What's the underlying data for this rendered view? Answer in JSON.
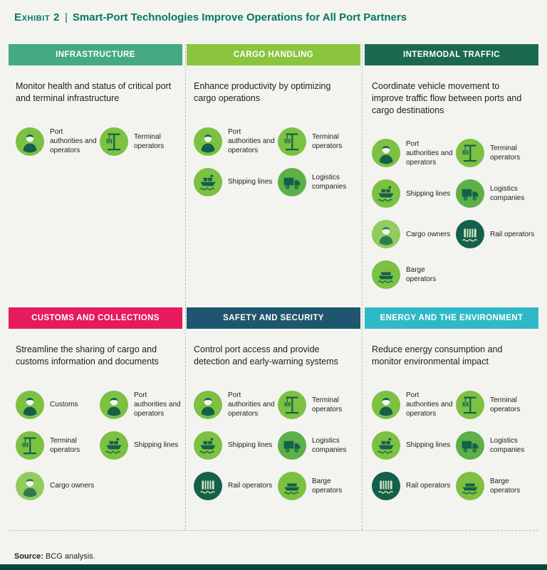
{
  "title": {
    "exhibit_label": "Exhibit 2",
    "divider": "|",
    "text": "Smart-Port Technologies Improve Operations for All Port Partners"
  },
  "source": {
    "label": "Source:",
    "text": "BCG analysis."
  },
  "colors": {
    "page_bg": "#F3F3F0",
    "title": "#00795E",
    "text": "#1D1D1B",
    "dash": "#BFBFBA",
    "bottom_bar": "#00493D"
  },
  "stakeholder_types": {
    "port_authorities": {
      "icon": "person-icon",
      "circle": "#7CC142",
      "glyph": "#14604A",
      "accent": "#F2F7EC"
    },
    "terminal": {
      "icon": "crane-icon",
      "circle": "#7CC142",
      "glyph": "#14604A",
      "accent": "#7CC142"
    },
    "shipping": {
      "icon": "ship-icon",
      "circle": "#7CC142",
      "glyph": "#14604A",
      "accent": "#7CC142"
    },
    "logistics": {
      "icon": "truck-icon",
      "circle": "#5CB047",
      "glyph": "#14604A",
      "accent": "#5CB047"
    },
    "cargo": {
      "icon": "person-icon",
      "circle": "#92CB5F",
      "glyph": "#2F7B4E",
      "accent": "#F2F7EC"
    },
    "rail": {
      "icon": "railcar-icon",
      "circle": "#14604A",
      "glyph": "#D6EBC8",
      "accent": "#14604A"
    },
    "barge": {
      "icon": "barge-icon",
      "circle": "#7CC142",
      "glyph": "#14604A",
      "accent": "#7CC142"
    },
    "customs": {
      "icon": "person-icon",
      "circle": "#7CC142",
      "glyph": "#14604A",
      "accent": "#F2F7EC"
    }
  },
  "panels": [
    {
      "id": "infrastructure",
      "header": "INFRASTRUCTURE",
      "header_color": "#45AA83",
      "description": "Monitor health and status of critical port and terminal infrastructure",
      "members": [
        {
          "type": "port_authorities",
          "label": "Port authorities and operators"
        },
        {
          "type": "terminal",
          "label": "Terminal operators"
        }
      ]
    },
    {
      "id": "cargo-handling",
      "header": "CARGO HANDLING",
      "header_color": "#8BC540",
      "description": "Enhance productivity by optimizing cargo operations",
      "members": [
        {
          "type": "port_authorities",
          "label": "Port authorities and operators"
        },
        {
          "type": "terminal",
          "label": "Terminal operators"
        },
        {
          "type": "shipping",
          "label": "Shipping lines"
        },
        {
          "type": "logistics",
          "label": "Logistics companies"
        }
      ]
    },
    {
      "id": "intermodal-traffic",
      "header": "INTERMODAL TRAFFIC",
      "header_color": "#1B6A4F",
      "description": "Coordinate vehicle movement to improve traffic flow between ports and cargo destinations",
      "members": [
        {
          "type": "port_authorities",
          "label": "Port authorities and operators"
        },
        {
          "type": "terminal",
          "label": "Terminal operators"
        },
        {
          "type": "shipping",
          "label": "Shipping lines"
        },
        {
          "type": "logistics",
          "label": "Logistics companies"
        },
        {
          "type": "cargo",
          "label": "Cargo owners"
        },
        {
          "type": "rail",
          "label": "Rail operators"
        },
        {
          "type": "barge",
          "label": "Barge operators"
        }
      ]
    },
    {
      "id": "customs-and-collections",
      "header": "CUSTOMS AND COLLECTIONS",
      "header_color": "#E61A5C",
      "description": "Streamline the sharing of cargo and customs information and documents",
      "members": [
        {
          "type": "customs",
          "label": "Customs"
        },
        {
          "type": "port_authorities",
          "label": "Port authorities and operators"
        },
        {
          "type": "terminal",
          "label": "Terminal operators"
        },
        {
          "type": "shipping",
          "label": "Shipping lines"
        },
        {
          "type": "cargo",
          "label": "Cargo owners"
        }
      ]
    },
    {
      "id": "safety-and-security",
      "header": "SAFETY AND SECURITY",
      "header_color": "#1F566F",
      "description": "Control port access and provide detection and early-warning systems",
      "members": [
        {
          "type": "port_authorities",
          "label": "Port authorities and operators"
        },
        {
          "type": "terminal",
          "label": "Terminal operators"
        },
        {
          "type": "shipping",
          "label": "Shipping lines"
        },
        {
          "type": "logistics",
          "label": "Logistics companies"
        },
        {
          "type": "rail",
          "label": "Rail operators"
        },
        {
          "type": "barge",
          "label": "Barge operators"
        }
      ]
    },
    {
      "id": "energy-and-environment",
      "header": "ENERGY AND THE ENVIRONMENT",
      "header_color": "#2FB9C7",
      "description": "Reduce energy consumption and monitor environmental impact",
      "members": [
        {
          "type": "port_authorities",
          "label": "Port authorities and operators"
        },
        {
          "type": "terminal",
          "label": "Terminal operators"
        },
        {
          "type": "shipping",
          "label": "Shipping lines"
        },
        {
          "type": "logistics",
          "label": "Logistics companies"
        },
        {
          "type": "rail",
          "label": "Rail operators"
        },
        {
          "type": "barge",
          "label": "Barge operators"
        }
      ]
    }
  ]
}
